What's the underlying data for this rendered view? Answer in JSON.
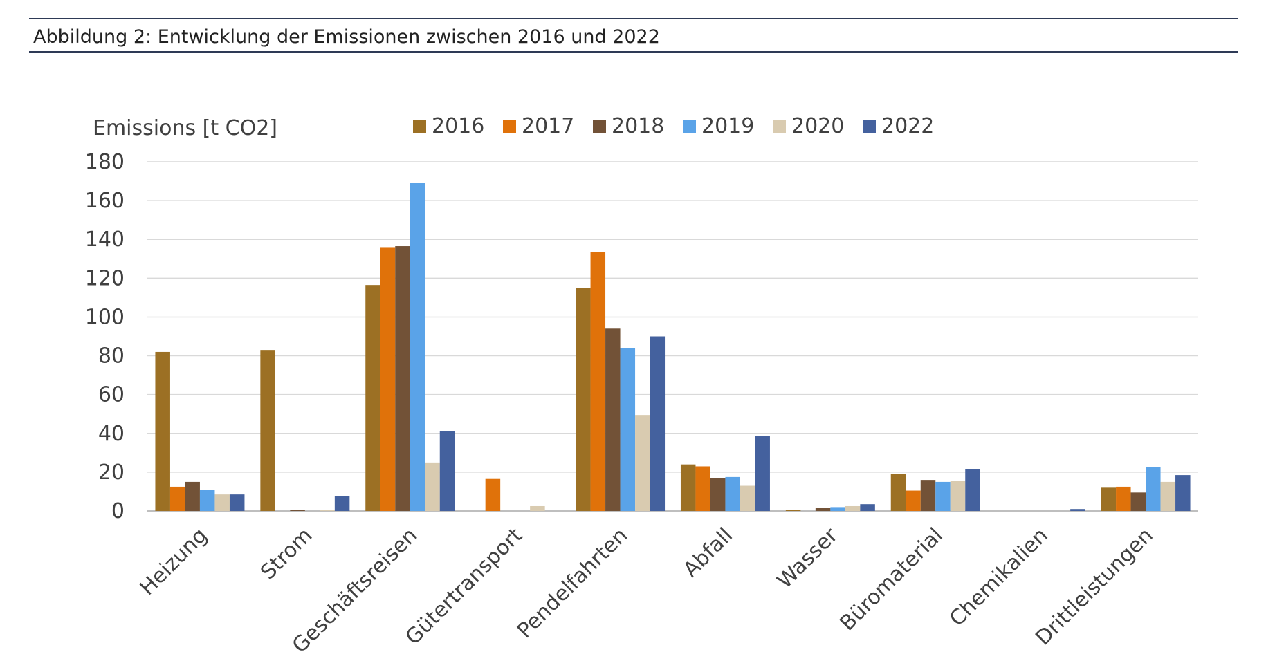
{
  "figure": {
    "caption": "Abbildung 2: Entwicklung der Emissionen zwischen 2016 und 2022"
  },
  "chart_data": {
    "type": "bar",
    "title": "",
    "ylabel": "Emissions [t CO2]",
    "xlabel": "",
    "ylim": [
      0,
      180
    ],
    "yticks": [
      0,
      20,
      40,
      60,
      80,
      100,
      120,
      140,
      160,
      180
    ],
    "grid": true,
    "legend_position": "top",
    "categories": [
      "Heizung",
      "Strom",
      "Geschäftsreisen",
      "Gütertransport",
      "Pendelfahrten",
      "Abfall",
      "Wasser",
      "Büromaterial",
      "Chemikalien",
      "Drittleistungen"
    ],
    "series": [
      {
        "name": "2016",
        "color": "#9c7024",
        "values": [
          82,
          83,
          116.5,
          0,
          115,
          24,
          0.5,
          19,
          0,
          12
        ]
      },
      {
        "name": "2017",
        "color": "#e0720a",
        "values": [
          12.5,
          0,
          136,
          16.5,
          133.5,
          23,
          0,
          10.5,
          0,
          12.5
        ]
      },
      {
        "name": "2018",
        "color": "#725237",
        "values": [
          15,
          0.5,
          136.5,
          0,
          94,
          17,
          1.5,
          16,
          0,
          9.5
        ]
      },
      {
        "name": "2019",
        "color": "#5aa3e8",
        "values": [
          11,
          0,
          169,
          0,
          84,
          17.5,
          2,
          15,
          0,
          22.5
        ]
      },
      {
        "name": "2020",
        "color": "#d9cbb0",
        "values": [
          8.5,
          0.5,
          25,
          2.5,
          49.5,
          13,
          2.5,
          15.5,
          0,
          15
        ]
      },
      {
        "name": "2022",
        "color": "#44619e",
        "values": [
          8.5,
          7.5,
          41,
          0,
          90,
          38.5,
          3.5,
          21.5,
          1,
          18.5
        ]
      }
    ]
  }
}
